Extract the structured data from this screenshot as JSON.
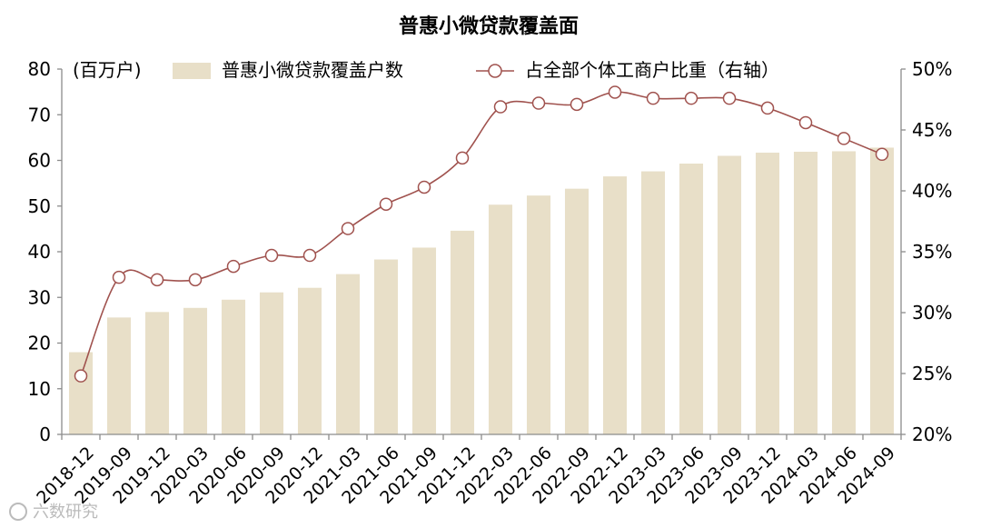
{
  "chart_data": {
    "type": "bar+line",
    "title": "普惠小微贷款覆盖面",
    "unit_label": "(百万户)",
    "categories": [
      "2018-12",
      "2019-09",
      "2019-12",
      "2020-03",
      "2020-06",
      "2020-09",
      "2020-12",
      "2021-03",
      "2021-06",
      "2021-09",
      "2021-12",
      "2022-03",
      "2022-06",
      "2022-09",
      "2022-12",
      "2023-03",
      "2023-06",
      "2023-09",
      "2023-12",
      "2024-03",
      "2024-06",
      "2024-09"
    ],
    "series": [
      {
        "name": "普惠小微贷款覆盖户数",
        "type": "bar",
        "axis": "left",
        "color": "#e8dfc8",
        "values": [
          18.0,
          25.6,
          26.8,
          27.7,
          29.5,
          31.1,
          32.1,
          35.1,
          38.3,
          40.9,
          44.6,
          50.3,
          52.3,
          53.8,
          56.5,
          57.6,
          59.3,
          61.0,
          61.7,
          61.9,
          62.0,
          62.8
        ]
      },
      {
        "name": "占全部个体工商户比重（右轴）",
        "type": "line",
        "axis": "right",
        "color": "#a0524e",
        "values": [
          24.8,
          32.9,
          32.7,
          32.7,
          33.8,
          34.7,
          34.7,
          36.9,
          38.9,
          40.3,
          42.7,
          46.9,
          47.2,
          47.1,
          48.1,
          47.6,
          47.6,
          47.6,
          46.8,
          45.6,
          44.3,
          43.0
        ]
      }
    ],
    "y_left": {
      "min": 0,
      "max": 80,
      "ticks": [
        "0",
        "10",
        "20",
        "30",
        "40",
        "50",
        "60",
        "70",
        "80"
      ]
    },
    "y_right": {
      "min": 20,
      "max": 50,
      "ticks": [
        "20%",
        "25%",
        "30%",
        "35%",
        "40%",
        "45%",
        "50%"
      ]
    },
    "legend_position": "top",
    "grid": false
  },
  "watermark": "六数研究"
}
